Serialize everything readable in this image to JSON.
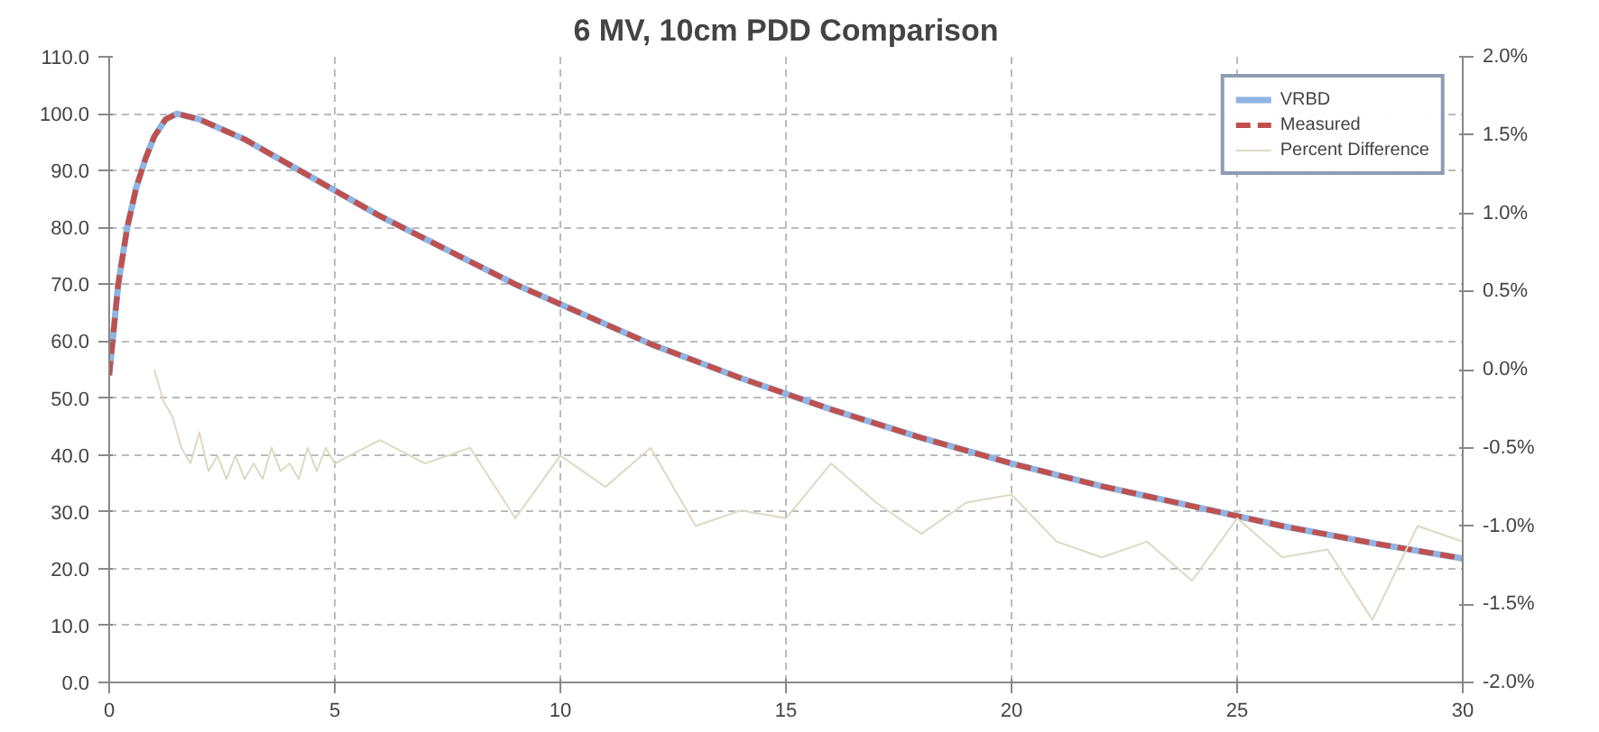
{
  "chart_data": {
    "type": "line",
    "title": "6 MV, 10cm PDD Comparison",
    "xlim": [
      0,
      30
    ],
    "xticks": [
      0,
      5,
      10,
      15,
      20,
      25,
      30
    ],
    "ylim": [
      0,
      110
    ],
    "yticks": [
      {
        "value": 0,
        "label": "0.0"
      },
      {
        "value": 10,
        "label": "10.0"
      },
      {
        "value": 20,
        "label": "20.0"
      },
      {
        "value": 30,
        "label": "30.0"
      },
      {
        "value": 40,
        "label": "40.0"
      },
      {
        "value": 50,
        "label": "50.0"
      },
      {
        "value": 60,
        "label": "60.0"
      },
      {
        "value": 70,
        "label": "70.0"
      },
      {
        "value": 80,
        "label": "80.0"
      },
      {
        "value": 90,
        "label": "90.0"
      },
      {
        "value": 100,
        "label": "100.0"
      },
      {
        "value": 110,
        "label": "110.0"
      }
    ],
    "y2lim": [
      -2,
      2
    ],
    "y2ticks": [
      {
        "value": -2,
        "label": "-2.0%"
      },
      {
        "value": -1.5,
        "label": "-1.5%"
      },
      {
        "value": -1,
        "label": "-1.0%"
      },
      {
        "value": -0.5,
        "label": "-0.5%"
      },
      {
        "value": 0,
        "label": "0.0%"
      },
      {
        "value": 0.5,
        "label": "0.5%"
      },
      {
        "value": 1,
        "label": "1.0%"
      },
      {
        "value": 1.5,
        "label": "1.5%"
      },
      {
        "value": 2,
        "label": "2.0%"
      }
    ],
    "grid": true,
    "legend": "top right",
    "marker": "none",
    "series": [
      {
        "name": "VRBD",
        "color": "#8eb4e3",
        "line_style": "solid",
        "x": [
          0,
          0.2,
          0.4,
          0.6,
          0.8,
          1,
          1.25,
          1.5,
          2,
          3,
          4,
          5,
          6,
          7,
          8,
          9,
          10,
          12,
          14,
          16,
          18,
          20,
          22,
          24,
          26,
          28,
          30
        ],
        "values": [
          54,
          70,
          80,
          87,
          92,
          96,
          99,
          100,
          99,
          95.5,
          91,
          86.5,
          82,
          78,
          74,
          70,
          66.5,
          59.5,
          53.5,
          48,
          43,
          38.5,
          34.5,
          31,
          27.5,
          24.5,
          21.8
        ]
      },
      {
        "name": "Measured",
        "color": "#c0504d",
        "line_style": "dashed",
        "x": [
          0,
          0.2,
          0.4,
          0.6,
          0.8,
          1,
          1.25,
          1.5,
          2,
          3,
          4,
          5,
          6,
          7,
          8,
          9,
          10,
          12,
          14,
          16,
          18,
          20,
          22,
          24,
          26,
          28,
          30
        ],
        "values": [
          54,
          70,
          80,
          87,
          92,
          96,
          99,
          100,
          99,
          95.5,
          91,
          86.5,
          82,
          78,
          74,
          70,
          66.5,
          59.5,
          53.5,
          48,
          43,
          38.5,
          34.5,
          31,
          27.5,
          24.5,
          21.8
        ]
      },
      {
        "name": "Percent Difference",
        "color": "#ddd9c3",
        "line_style": "solid",
        "axis": "y2",
        "x": [
          1,
          1.2,
          1.4,
          1.6,
          1.8,
          2,
          2.2,
          2.4,
          2.6,
          2.8,
          3,
          3.2,
          3.4,
          3.6,
          3.8,
          4,
          4.2,
          4.4,
          4.6,
          4.8,
          5,
          6,
          7,
          8,
          9,
          10,
          11,
          12,
          13,
          14,
          15,
          16,
          17,
          18,
          19,
          20,
          21,
          22,
          23,
          24,
          25,
          26,
          27,
          28,
          29,
          30
        ],
        "values": [
          0,
          -0.2,
          -0.3,
          -0.5,
          -0.6,
          -0.4,
          -0.65,
          -0.55,
          -0.7,
          -0.55,
          -0.7,
          -0.6,
          -0.7,
          -0.5,
          -0.65,
          -0.6,
          -0.7,
          -0.5,
          -0.65,
          -0.5,
          -0.6,
          -0.45,
          -0.6,
          -0.5,
          -0.95,
          -0.55,
          -0.75,
          -0.5,
          -1.0,
          -0.9,
          -0.95,
          -0.6,
          -0.85,
          -1.05,
          -0.85,
          -0.8,
          -1.1,
          -1.2,
          -1.1,
          -1.35,
          -0.95,
          -1.2,
          -1.15,
          -1.6,
          -1.0,
          -1.1
        ]
      }
    ]
  }
}
